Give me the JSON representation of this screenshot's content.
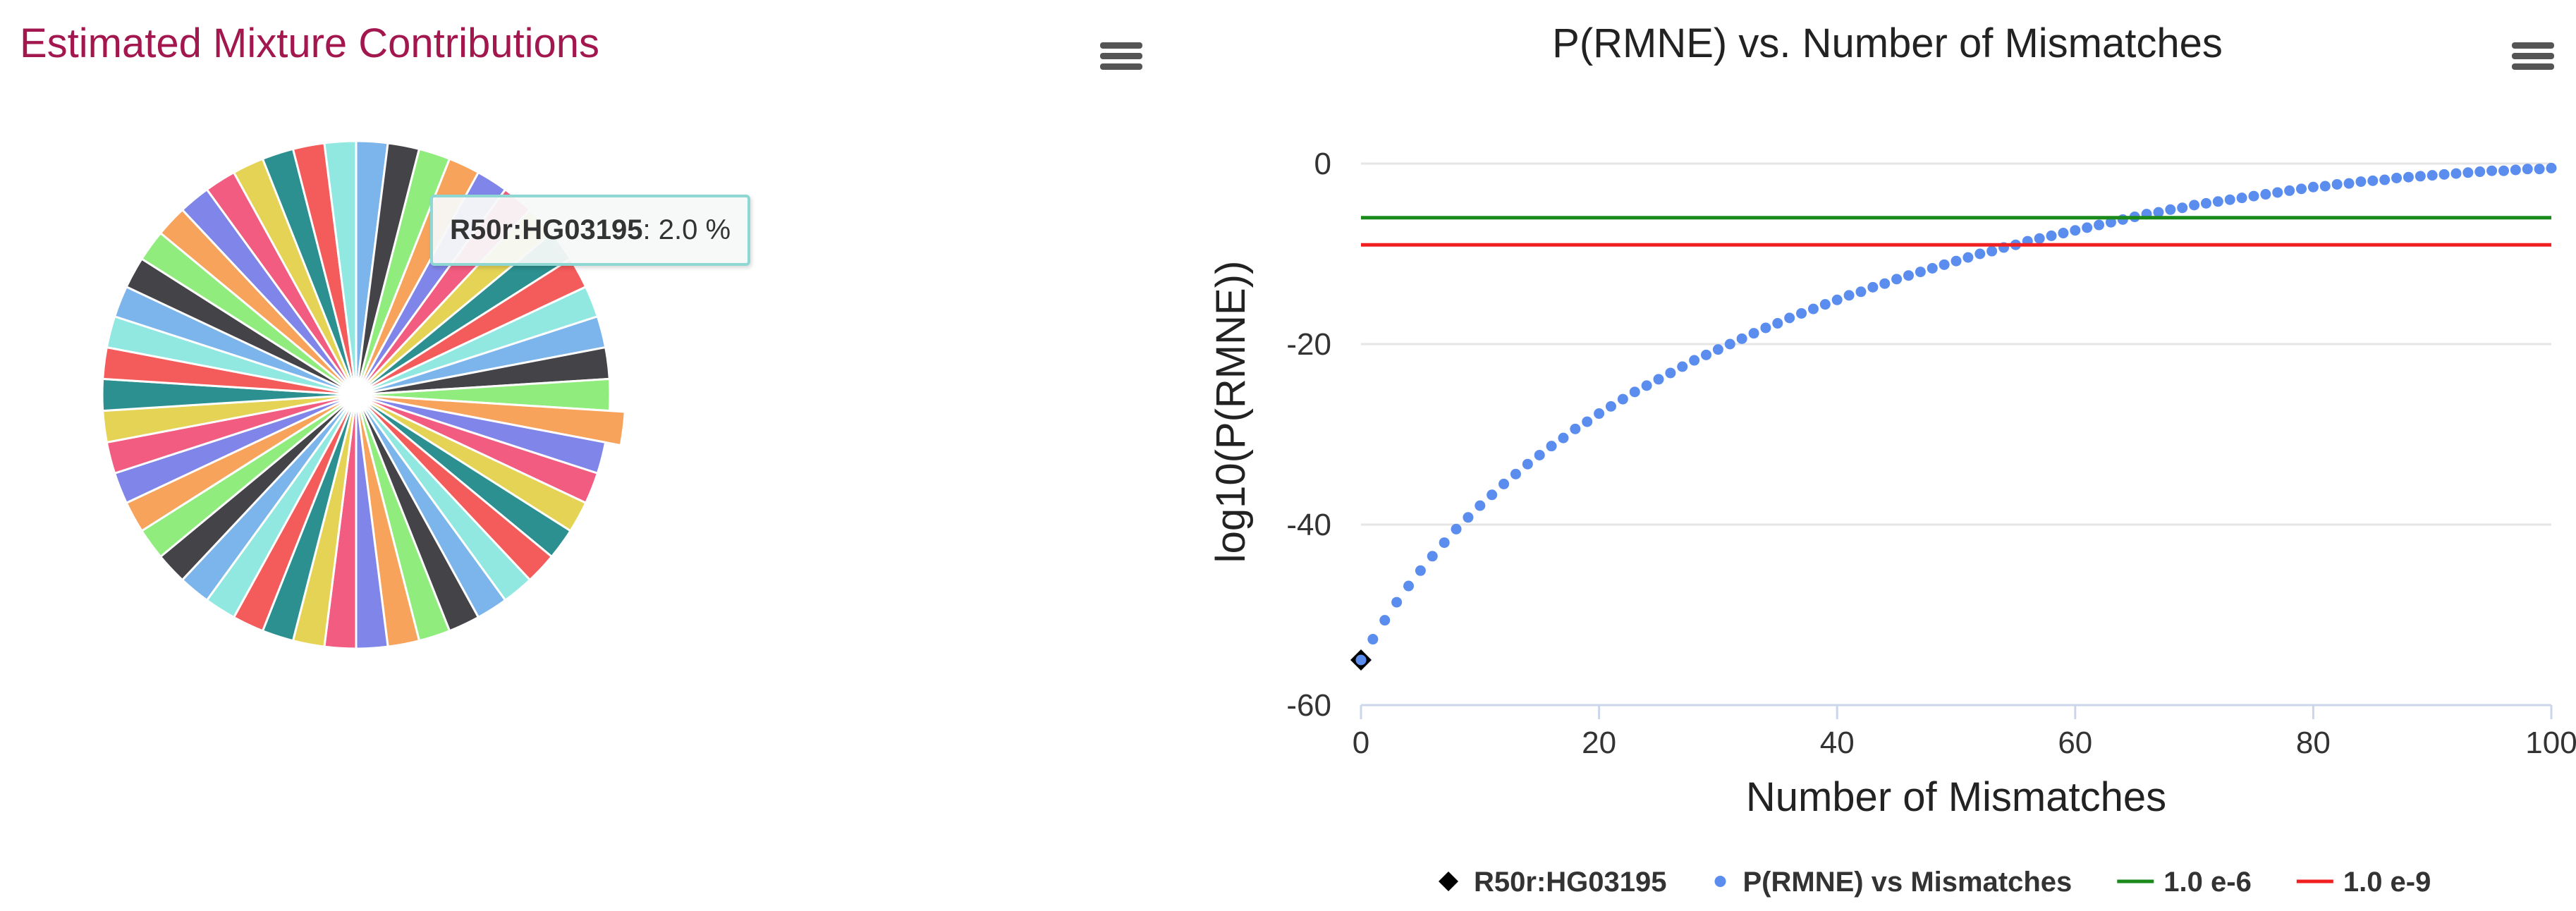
{
  "left": {
    "title": "Estimated Mixture Contributions",
    "menu_icon": "hamburger-menu-icon",
    "tooltip": {
      "name": "R50r:HG03195",
      "separator": ": ",
      "value_text": "2.0 %"
    }
  },
  "right": {
    "title": "P(RMNE) vs. Number of Mismatches",
    "menu_icon": "hamburger-menu-icon"
  },
  "chart_data": [
    {
      "type": "pie",
      "title": "Estimated Mixture Contributions",
      "slice_count": 50,
      "value_each_percent": 2.0,
      "hovered_slice": {
        "label": "R50r:HG03195",
        "value_percent": 2.0
      },
      "colors": [
        "#7cb5ec",
        "#434348",
        "#90ed7d",
        "#f7a35c",
        "#8085e9",
        "#f15c80",
        "#e4d354",
        "#2b908f",
        "#f45b5b",
        "#91e8e1"
      ]
    },
    {
      "type": "scatter",
      "title": "P(RMNE) vs. Number of Mismatches",
      "xlabel": "Number of Mismatches",
      "ylabel": "log10(P(RMNE))",
      "xlim": [
        0,
        100
      ],
      "ylim": [
        -60,
        5
      ],
      "x_ticks": [
        0,
        20,
        40,
        60,
        80,
        100
      ],
      "y_ticks": [
        0,
        -20,
        -40,
        -60
      ],
      "grid": "horizontal",
      "legend_position": "bottom",
      "series": [
        {
          "name": "R50r:HG03195",
          "marker": "diamond",
          "color": "#000000",
          "points": [
            [
              0,
              -55
            ]
          ]
        },
        {
          "name": "P(RMNE) vs Mismatches",
          "marker": "circle",
          "color": "#5b8def",
          "x": [
            0,
            1,
            2,
            3,
            4,
            5,
            6,
            7,
            8,
            9,
            10,
            11,
            12,
            13,
            14,
            15,
            16,
            17,
            18,
            19,
            20,
            21,
            22,
            23,
            24,
            25,
            26,
            27,
            28,
            29,
            30,
            31,
            32,
            33,
            34,
            35,
            36,
            37,
            38,
            39,
            40,
            41,
            42,
            43,
            44,
            45,
            46,
            47,
            48,
            49,
            50,
            51,
            52,
            53,
            54,
            55,
            56,
            57,
            58,
            59,
            60,
            61,
            62,
            63,
            64,
            65,
            66,
            67,
            68,
            69,
            70,
            71,
            72,
            73,
            74,
            75,
            76,
            77,
            78,
            79,
            80,
            81,
            82,
            83,
            84,
            85,
            86,
            87,
            88,
            89,
            90,
            91,
            92,
            93,
            94,
            95,
            96,
            97,
            98,
            99,
            100
          ],
          "y": [
            -55.0,
            -52.7,
            -50.6,
            -48.6,
            -46.8,
            -45.1,
            -43.5,
            -42.0,
            -40.5,
            -39.2,
            -37.9,
            -36.7,
            -35.5,
            -34.4,
            -33.3,
            -32.3,
            -31.3,
            -30.4,
            -29.4,
            -28.6,
            -27.7,
            -26.9,
            -26.1,
            -25.3,
            -24.6,
            -23.9,
            -23.2,
            -22.5,
            -21.8,
            -21.2,
            -20.6,
            -20.0,
            -19.4,
            -18.8,
            -18.2,
            -17.7,
            -17.1,
            -16.6,
            -16.1,
            -15.6,
            -15.1,
            -14.6,
            -14.2,
            -13.7,
            -13.3,
            -12.8,
            -12.4,
            -12.0,
            -11.6,
            -11.2,
            -10.8,
            -10.4,
            -10.0,
            -9.7,
            -9.3,
            -9.0,
            -8.6,
            -8.3,
            -8.0,
            -7.7,
            -7.4,
            -7.1,
            -6.8,
            -6.5,
            -6.2,
            -5.9,
            -5.6,
            -5.4,
            -5.1,
            -4.9,
            -4.6,
            -4.4,
            -4.2,
            -4.0,
            -3.8,
            -3.6,
            -3.4,
            -3.2,
            -3.0,
            -2.8,
            -2.6,
            -2.5,
            -2.3,
            -2.2,
            -2.0,
            -1.9,
            -1.8,
            -1.6,
            -1.5,
            -1.4,
            -1.3,
            -1.2,
            -1.1,
            -1.0,
            -0.9,
            -0.8,
            -0.8,
            -0.7,
            -0.6,
            -0.6,
            -0.5
          ]
        },
        {
          "name": "1.0 e-6",
          "type": "line",
          "color": "#1a8a1a",
          "y_constant": -6
        },
        {
          "name": "1.0 e-9",
          "type": "line",
          "color": "#f02020",
          "y_constant": -9
        }
      ]
    }
  ]
}
